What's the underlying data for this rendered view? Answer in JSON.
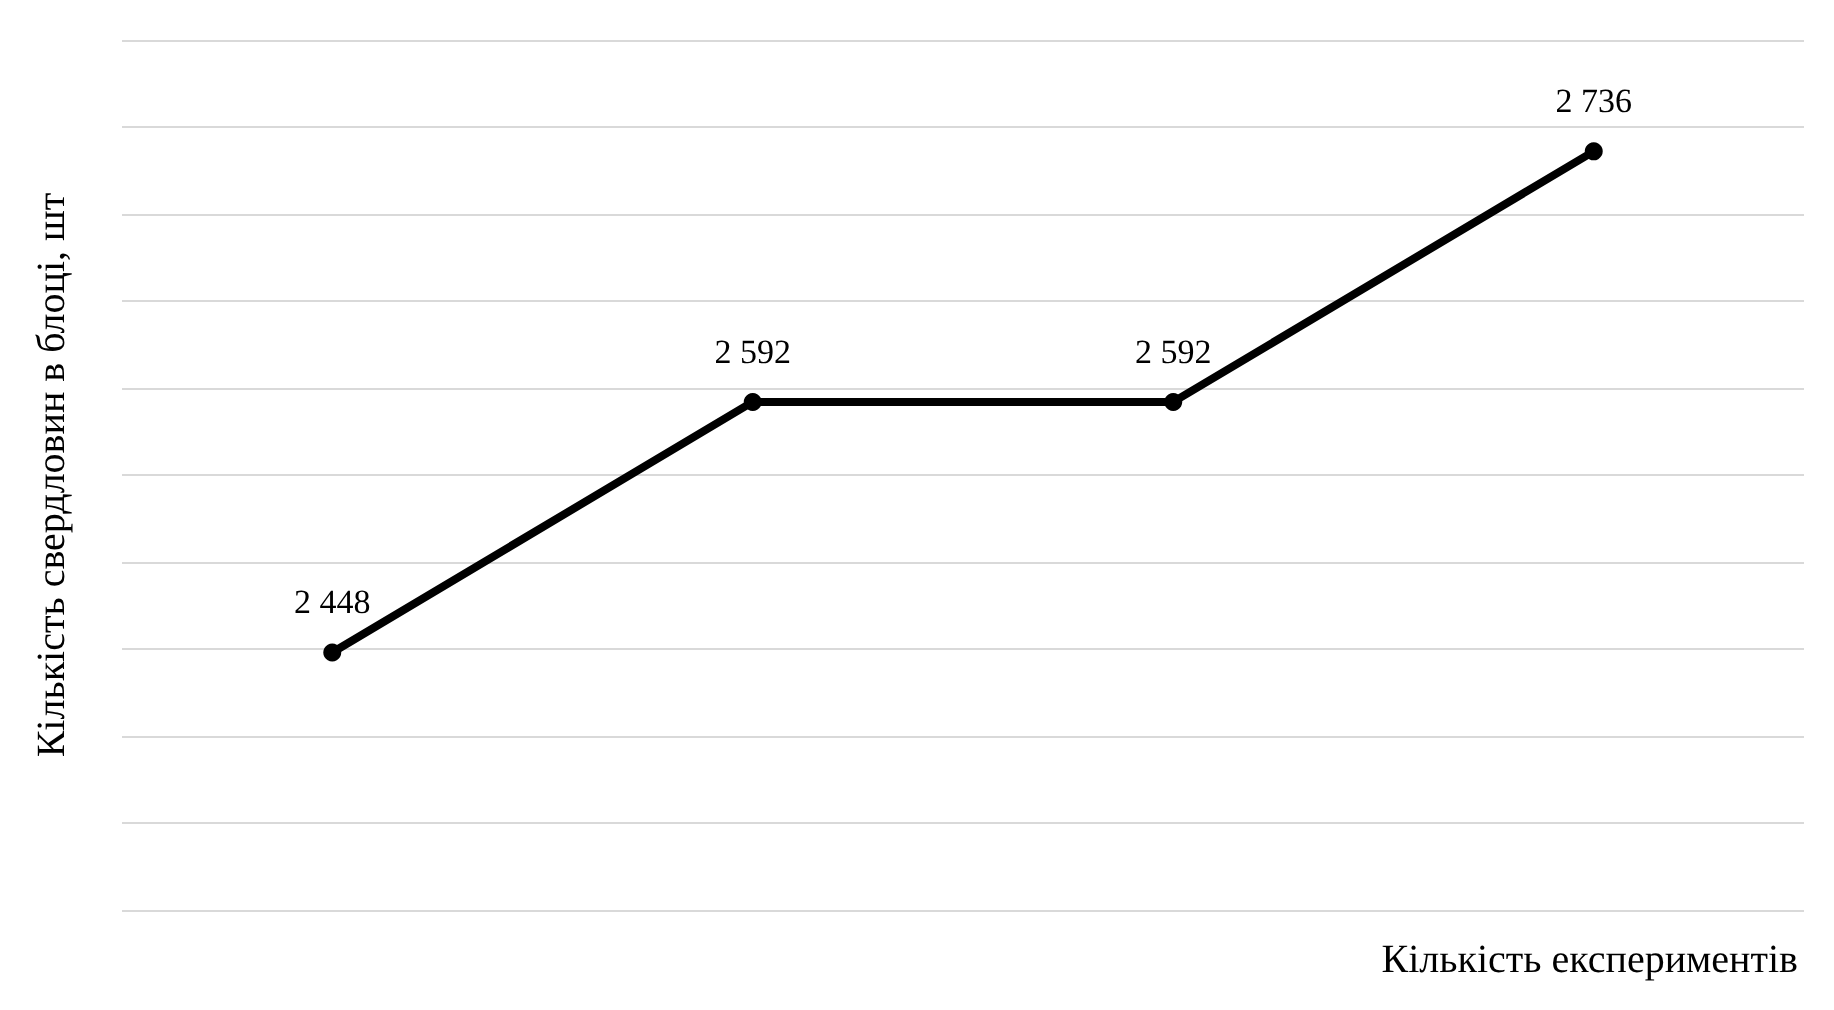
{
  "chart_data": {
    "type": "line",
    "xlabel": "Кількість експериментів",
    "ylabel": "Кількість свердловин в блоці, шт",
    "categories": [
      null,
      null,
      null,
      null
    ],
    "series": [
      {
        "color": "#000000",
        "values": [
          2448,
          2592,
          2592,
          2736
        ]
      }
    ],
    "data_labels": true,
    "value_labels": [
      "2 448",
      "2 592",
      "2 592",
      "2 736"
    ],
    "marker": "circle",
    "line_style": "solid",
    "grid": "y",
    "ylim": [
      2300,
      2800
    ],
    "yticks": [
      {
        "value": 2300,
        "label": null
      },
      {
        "value": 2350,
        "label": null
      },
      {
        "value": 2400,
        "label": null
      },
      {
        "value": 2450,
        "label": null
      },
      {
        "value": 2500,
        "label": null
      },
      {
        "value": 2550,
        "label": null
      },
      {
        "value": 2600,
        "label": null
      },
      {
        "value": 2650,
        "label": null
      },
      {
        "value": 2700,
        "label": null
      },
      {
        "value": 2750,
        "label": null
      },
      {
        "value": 2800,
        "label": null
      }
    ]
  }
}
